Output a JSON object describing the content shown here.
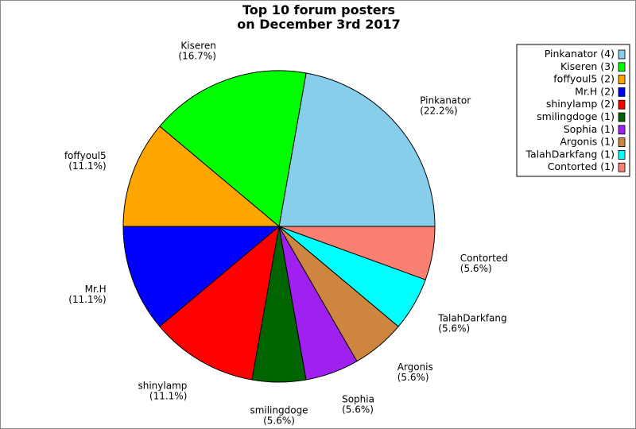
{
  "chart_data": {
    "type": "pie",
    "title": [
      "Top 10 forum posters",
      "on December 3rd 2017"
    ],
    "legend_position": "top-right",
    "slices": [
      {
        "name": "Pinkanator",
        "value": 4,
        "percent": "22.2%",
        "color": "#87CEEB"
      },
      {
        "name": "Kiseren",
        "value": 3,
        "percent": "16.7%",
        "color": "#00FF00"
      },
      {
        "name": "foffyoul5",
        "value": 2,
        "percent": "11.1%",
        "color": "#FFA500"
      },
      {
        "name": "Mr.H",
        "value": 2,
        "percent": "11.1%",
        "color": "#0000FF"
      },
      {
        "name": "shinylamp",
        "value": 2,
        "percent": "11.1%",
        "color": "#FF0000"
      },
      {
        "name": "smilingdoge",
        "value": 1,
        "percent": "5.6%",
        "color": "#006400"
      },
      {
        "name": "Sophia",
        "value": 1,
        "percent": "5.6%",
        "color": "#A020F0"
      },
      {
        "name": "Argonis",
        "value": 1,
        "percent": "5.6%",
        "color": "#CD853F"
      },
      {
        "name": "TalahDarkfang",
        "value": 1,
        "percent": "5.6%",
        "color": "#00FFFF"
      },
      {
        "name": "Contorted",
        "value": 1,
        "percent": "5.6%",
        "color": "#FA8072"
      }
    ]
  }
}
